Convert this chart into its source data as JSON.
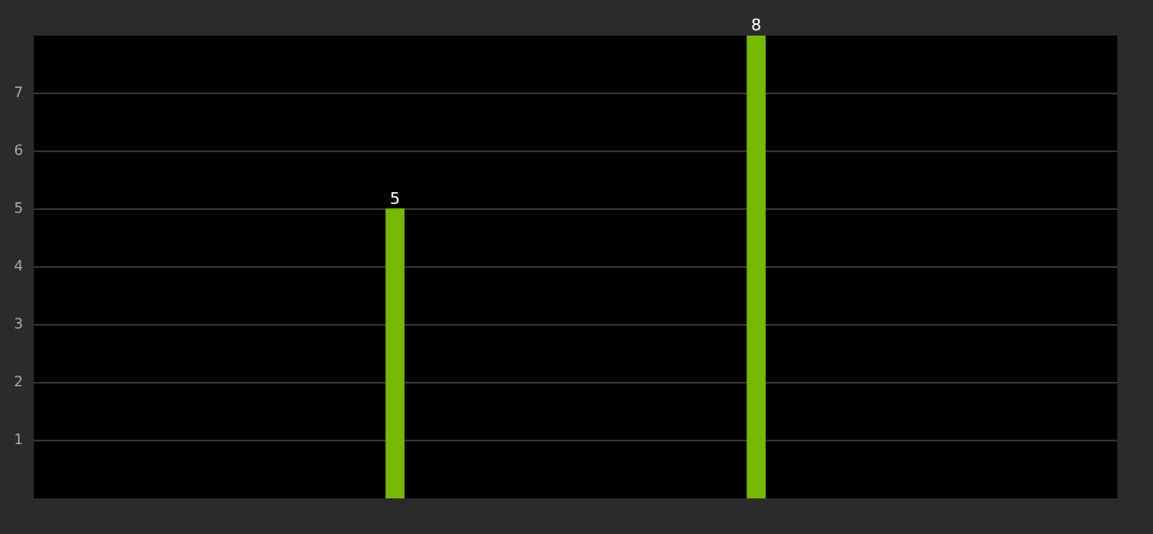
{
  "chart_data": {
    "type": "bar",
    "categories": [
      null,
      null,
      null,
      null
    ],
    "values": [
      null,
      5,
      8,
      null
    ],
    "color": "#76b900",
    "ylim": [
      0,
      8
    ],
    "yticks": [
      1,
      2,
      3,
      4,
      5,
      6,
      7
    ],
    "grid": "y",
    "tick_labels": "y",
    "data_labels": true
  }
}
